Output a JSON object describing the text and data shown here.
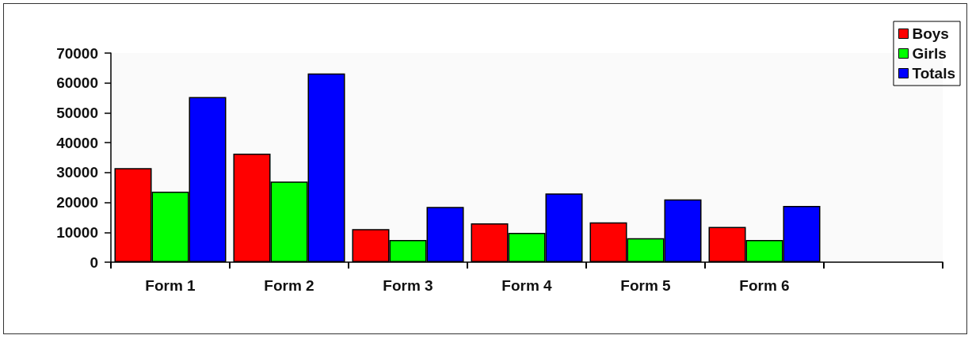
{
  "chart_data": {
    "type": "bar",
    "categories": [
      "Form 1",
      "Form 2",
      "Form 3",
      "Form 4",
      "Form 5",
      "Form 6",
      null
    ],
    "series": [
      {
        "name": "Boys",
        "color": "#ff0000",
        "values": [
          31500,
          36300,
          11100,
          13000,
          13300,
          11800,
          null
        ]
      },
      {
        "name": "Girls",
        "color": "#00ff00",
        "values": [
          23600,
          27000,
          7400,
          9800,
          8000,
          7400,
          null
        ]
      },
      {
        "name": "Totals",
        "color": "#0000ff",
        "values": [
          55300,
          63200,
          18500,
          23000,
          21000,
          18800,
          null
        ]
      }
    ],
    "ylim": [
      0,
      70000
    ],
    "yticks": [
      0,
      10000,
      20000,
      30000,
      40000,
      50000,
      60000,
      70000
    ],
    "grid": false,
    "legend": "top right"
  }
}
